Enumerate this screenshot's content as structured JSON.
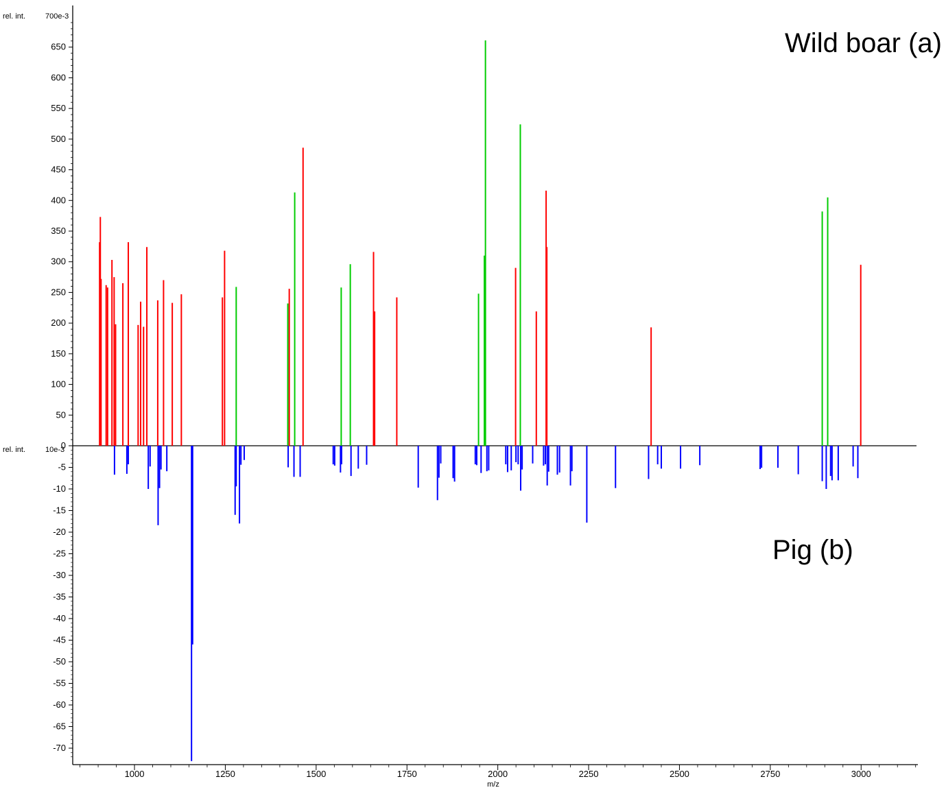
{
  "chart_data": {
    "type": "bar",
    "top": {
      "label": "Wild boar (a)",
      "ylabel": "rel. int.",
      "yunit": "700e-3",
      "ylim": [
        0,
        700
      ],
      "yticks": [
        0,
        50,
        100,
        150,
        200,
        250,
        300,
        350,
        400,
        450,
        500,
        550,
        600,
        650
      ],
      "series": [
        {
          "color": "#ff0000",
          "points": [
            [
              904,
              332
            ],
            [
              906,
              373
            ],
            [
              908,
              272
            ],
            [
              922,
              262
            ],
            [
              926,
              258
            ],
            [
              938,
              303
            ],
            [
              944,
              275
            ],
            [
              948,
              198
            ],
            [
              968,
              265
            ],
            [
              983,
              332
            ],
            [
              1010,
              197
            ],
            [
              1017,
              235
            ],
            [
              1025,
              194
            ],
            [
              1034,
              324
            ],
            [
              1064,
              237
            ],
            [
              1080,
              270
            ],
            [
              1104,
              233
            ],
            [
              1129,
              247
            ],
            [
              1242,
              242
            ],
            [
              1248,
              318
            ],
            [
              1426,
              256
            ],
            [
              1464,
              486
            ],
            [
              1658,
              316
            ],
            [
              1661,
              219
            ],
            [
              1722,
              242
            ],
            [
              2049,
              290
            ],
            [
              2106,
              219
            ],
            [
              2133,
              416
            ],
            [
              2135,
              324
            ],
            [
              2422,
              193
            ],
            [
              2999,
              295
            ]
          ]
        },
        {
          "color": "#00cc00",
          "points": [
            [
              1280,
              259
            ],
            [
              1422,
              232
            ],
            [
              1441,
              413
            ],
            [
              1569,
              258
            ],
            [
              1594,
              296
            ],
            [
              1947,
              248
            ],
            [
              1963,
              310
            ],
            [
              1966,
              661
            ],
            [
              2062,
              524
            ],
            [
              2893,
              382
            ],
            [
              2908,
              405
            ]
          ]
        }
      ]
    },
    "bottom": {
      "label": "Pig (b)",
      "ylabel": "rel. int.",
      "yunit": "10e-3",
      "ylim": [
        -73,
        0
      ],
      "yticks": [
        -5,
        -10,
        -15,
        -20,
        -25,
        -30,
        -35,
        -40,
        -45,
        -50,
        -55,
        -60,
        -65,
        -70
      ],
      "series": [
        {
          "color": "#0000ff",
          "points": [
            [
              945,
              -6.7
            ],
            [
              979,
              -6.5
            ],
            [
              983,
              -4.3
            ],
            [
              1038,
              -10.0
            ],
            [
              1043,
              -4.8
            ],
            [
              1065,
              -18.4
            ],
            [
              1069,
              -9.8
            ],
            [
              1073,
              -5.5
            ],
            [
              1089,
              -5.9
            ],
            [
              1157,
              -73
            ],
            [
              1160,
              -46
            ],
            [
              1277,
              -16
            ],
            [
              1280,
              -9.4
            ],
            [
              1289,
              -18
            ],
            [
              1293,
              -4.4
            ],
            [
              1302,
              -3.3
            ],
            [
              1423,
              -5.0
            ],
            [
              1439,
              -7.2
            ],
            [
              1456,
              -7.2
            ],
            [
              1547,
              -4.3
            ],
            [
              1551,
              -4.6
            ],
            [
              1567,
              -6.2
            ],
            [
              1570,
              -4.3
            ],
            [
              1596,
              -7.0
            ],
            [
              1616,
              -5.3
            ],
            [
              1639,
              -4.4
            ],
            [
              1781,
              -9.7
            ],
            [
              1834,
              -12.6
            ],
            [
              1838,
              -7.4
            ],
            [
              1843,
              -4.1
            ],
            [
              1877,
              -7.5
            ],
            [
              1881,
              -8.3
            ],
            [
              1938,
              -4.3
            ],
            [
              1942,
              -4.5
            ],
            [
              1954,
              -6.3
            ],
            [
              1970,
              -5.9
            ],
            [
              1975,
              -5.7
            ],
            [
              2022,
              -4.3
            ],
            [
              2027,
              -6.1
            ],
            [
              2037,
              -5.7
            ],
            [
              2050,
              -3.8
            ],
            [
              2056,
              -4.3
            ],
            [
              2063,
              -10.4
            ],
            [
              2067,
              -5.5
            ],
            [
              2096,
              -4.1
            ],
            [
              2126,
              -4.6
            ],
            [
              2131,
              -4.3
            ],
            [
              2136,
              -9.2
            ],
            [
              2140,
              -6.0
            ],
            [
              2164,
              -6.7
            ],
            [
              2170,
              -6.2
            ],
            [
              2200,
              -9.2
            ],
            [
              2204,
              -5.9
            ],
            [
              2245,
              -17.8
            ],
            [
              2324,
              -9.8
            ],
            [
              2415,
              -7.7
            ],
            [
              2440,
              -4.3
            ],
            [
              2450,
              -5.3
            ],
            [
              2503,
              -5.3
            ],
            [
              2556,
              -4.5
            ],
            [
              2722,
              -5.4
            ],
            [
              2726,
              -5.1
            ],
            [
              2771,
              -5.1
            ],
            [
              2827,
              -6.6
            ],
            [
              2893,
              -8.2
            ],
            [
              2904,
              -10.0
            ],
            [
              2916,
              -7.0
            ],
            [
              2920,
              -8.0
            ],
            [
              2937,
              -8.0
            ],
            [
              2978,
              -4.8
            ],
            [
              2991,
              -7.5
            ]
          ]
        }
      ]
    },
    "x": {
      "label": "m/z",
      "xlim": [
        830,
        3160
      ],
      "ticks": [
        1000,
        1250,
        1500,
        1750,
        2000,
        2250,
        2500,
        2750,
        3000
      ]
    }
  }
}
